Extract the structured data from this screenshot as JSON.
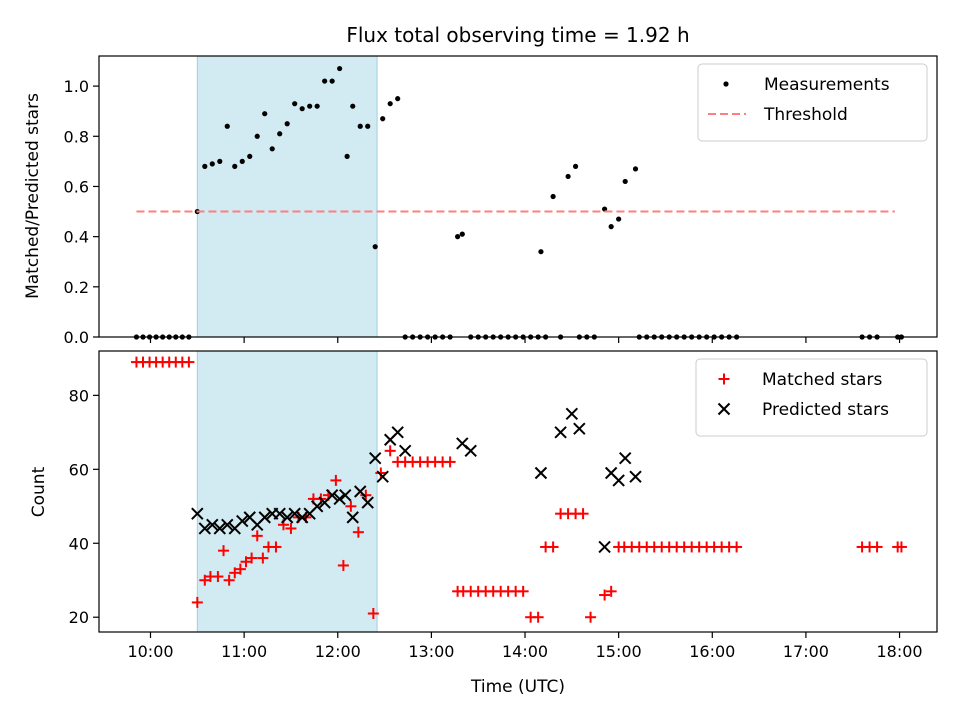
{
  "chart_data": [
    {
      "type": "scatter",
      "title": "Flux total observing time = 1.92 h",
      "xlabel": "",
      "ylabel": "Matched/Predicted stars",
      "ylim": [
        0,
        1.12
      ],
      "yticks": [
        0.0,
        0.2,
        0.4,
        0.6,
        0.8,
        1.0
      ],
      "ytick_labels": [
        "0.0",
        "0.2",
        "0.4",
        "0.6",
        "0.8",
        "1.0"
      ],
      "xlim_hours": [
        9.45,
        18.4
      ],
      "highlight_span_hours": [
        10.5,
        12.42
      ],
      "highlight_color": "#add8e6",
      "legend_position": "upper right",
      "series": [
        {
          "name": "Measurements",
          "marker": "dot",
          "color": "#000000",
          "x": [
            9.85,
            9.92,
            9.99,
            10.06,
            10.13,
            10.2,
            10.27,
            10.34,
            10.41,
            10.5,
            10.58,
            10.66,
            10.74,
            10.82,
            10.9,
            10.98,
            11.06,
            11.14,
            11.22,
            11.3,
            11.38,
            11.46,
            11.54,
            11.62,
            11.7,
            11.78,
            11.86,
            11.94,
            12.02,
            12.1,
            12.16,
            12.24,
            12.32,
            12.4,
            12.48,
            12.56,
            12.64,
            12.72,
            12.8,
            12.88,
            12.96,
            13.04,
            13.12,
            13.2,
            13.28,
            13.33,
            13.42,
            13.5,
            13.58,
            13.66,
            13.74,
            13.82,
            13.9,
            13.98,
            14.06,
            14.14,
            14.17,
            14.22,
            14.3,
            14.38,
            14.46,
            14.54,
            14.58,
            14.66,
            14.74,
            14.85,
            14.92,
            15.0,
            15.07,
            15.18,
            15.22,
            15.3,
            15.38,
            15.46,
            15.54,
            15.62,
            15.7,
            15.78,
            15.86,
            15.94,
            16.02,
            16.1,
            16.18,
            16.26,
            17.6,
            17.68,
            17.76,
            17.98,
            18.02
          ],
          "y": [
            0,
            0,
            0,
            0,
            0,
            0,
            0,
            0,
            0,
            0.5,
            0.68,
            0.69,
            0.7,
            0.84,
            0.68,
            0.7,
            0.72,
            0.8,
            0.89,
            0.75,
            0.81,
            0.85,
            0.93,
            0.91,
            0.92,
            0.92,
            1.02,
            1.02,
            1.07,
            0.72,
            0.92,
            0.84,
            0.84,
            0.36,
            0.87,
            0.93,
            0.95,
            0,
            0,
            0,
            0,
            0,
            0,
            0,
            0.4,
            0.41,
            0,
            0,
            0,
            0,
            0,
            0,
            0,
            0,
            0,
            0,
            0.34,
            0,
            0.56,
            0,
            0.64,
            0.68,
            0,
            0,
            0,
            0.51,
            0.44,
            0.47,
            0.62,
            0.67,
            0,
            0,
            0,
            0,
            0,
            0,
            0,
            0,
            0,
            0,
            0,
            0,
            0,
            0,
            0,
            0,
            0,
            0,
            0
          ]
        },
        {
          "name": "Threshold",
          "marker": "dashed-line",
          "color": "#ff7f7f",
          "x": [
            9.85,
            17.95
          ],
          "y": [
            0.5,
            0.5
          ]
        }
      ]
    },
    {
      "type": "scatter",
      "title": "",
      "xlabel": "Time (UTC)",
      "ylabel": "Count",
      "ylim": [
        16,
        92
      ],
      "yticks": [
        20,
        40,
        60,
        80
      ],
      "ytick_labels": [
        "20",
        "40",
        "60",
        "80"
      ],
      "xlim_hours": [
        9.45,
        18.4
      ],
      "xticks_hours": [
        10,
        11,
        12,
        13,
        14,
        15,
        16,
        17,
        18
      ],
      "xtick_labels": [
        "10:00",
        "11:00",
        "12:00",
        "13:00",
        "14:00",
        "15:00",
        "16:00",
        "17:00",
        "18:00"
      ],
      "highlight_span_hours": [
        10.5,
        12.42
      ],
      "highlight_color": "#add8e6",
      "legend_position": "upper right",
      "series": [
        {
          "name": "Matched stars",
          "marker": "plus",
          "color": "#ff0000",
          "x": [
            9.85,
            9.92,
            9.99,
            10.06,
            10.13,
            10.2,
            10.27,
            10.34,
            10.41,
            10.5,
            10.58,
            10.64,
            10.72,
            10.78,
            10.84,
            10.9,
            10.96,
            11.02,
            11.08,
            11.14,
            11.2,
            11.26,
            11.34,
            11.42,
            11.5,
            11.58,
            11.66,
            11.74,
            11.82,
            11.9,
            11.98,
            12.06,
            12.14,
            12.22,
            12.3,
            12.38,
            12.46,
            12.56,
            12.64,
            12.72,
            12.8,
            12.88,
            12.96,
            13.04,
            13.12,
            13.2,
            13.28,
            13.34,
            13.42,
            13.5,
            13.58,
            13.66,
            13.74,
            13.82,
            13.9,
            13.98,
            14.06,
            14.14,
            14.22,
            14.3,
            14.38,
            14.46,
            14.54,
            14.62,
            14.7,
            14.85,
            14.92,
            15.0,
            15.06,
            15.14,
            15.22,
            15.3,
            15.38,
            15.46,
            15.54,
            15.62,
            15.7,
            15.78,
            15.86,
            15.94,
            16.02,
            16.1,
            16.18,
            16.26,
            17.6,
            17.68,
            17.76,
            17.98,
            18.02
          ],
          "y": [
            89,
            89,
            89,
            89,
            89,
            89,
            89,
            89,
            89,
            24,
            30,
            31,
            31,
            38,
            30,
            32,
            33,
            35,
            36,
            42,
            36,
            39,
            39,
            45,
            44,
            47,
            47,
            52,
            52,
            53,
            57,
            34,
            50,
            43,
            53,
            21,
            59,
            65,
            62,
            62,
            62,
            62,
            62,
            62,
            62,
            62,
            27,
            27,
            27,
            27,
            27,
            27,
            27,
            27,
            27,
            27,
            20,
            20,
            39,
            39,
            48,
            48,
            48,
            48,
            20,
            26,
            27,
            39,
            39,
            39,
            39,
            39,
            39,
            39,
            39,
            39,
            39,
            39,
            39,
            39,
            39,
            39,
            39,
            39,
            39,
            39,
            39,
            39,
            39
          ]
        },
        {
          "name": "Predicted stars",
          "marker": "x",
          "color": "#000000",
          "x": [
            10.5,
            10.58,
            10.66,
            10.74,
            10.82,
            10.9,
            10.98,
            11.06,
            11.14,
            11.22,
            11.3,
            11.38,
            11.46,
            11.54,
            11.62,
            11.7,
            11.78,
            11.86,
            11.94,
            12.02,
            12.08,
            12.16,
            12.24,
            12.32,
            12.4,
            12.48,
            12.56,
            12.64,
            12.72,
            13.33,
            13.42,
            14.17,
            14.38,
            14.5,
            14.58,
            14.85,
            14.92,
            15.0,
            15.07,
            15.18
          ],
          "y": [
            48,
            44,
            45,
            44,
            45,
            44,
            46,
            47,
            45,
            47,
            48,
            48,
            47,
            48,
            47,
            48,
            50,
            51,
            53,
            52,
            53,
            47,
            54,
            51,
            63,
            58,
            68,
            70,
            65,
            67,
            65,
            59,
            70,
            75,
            71,
            39,
            59,
            57,
            63,
            58
          ]
        }
      ]
    }
  ]
}
